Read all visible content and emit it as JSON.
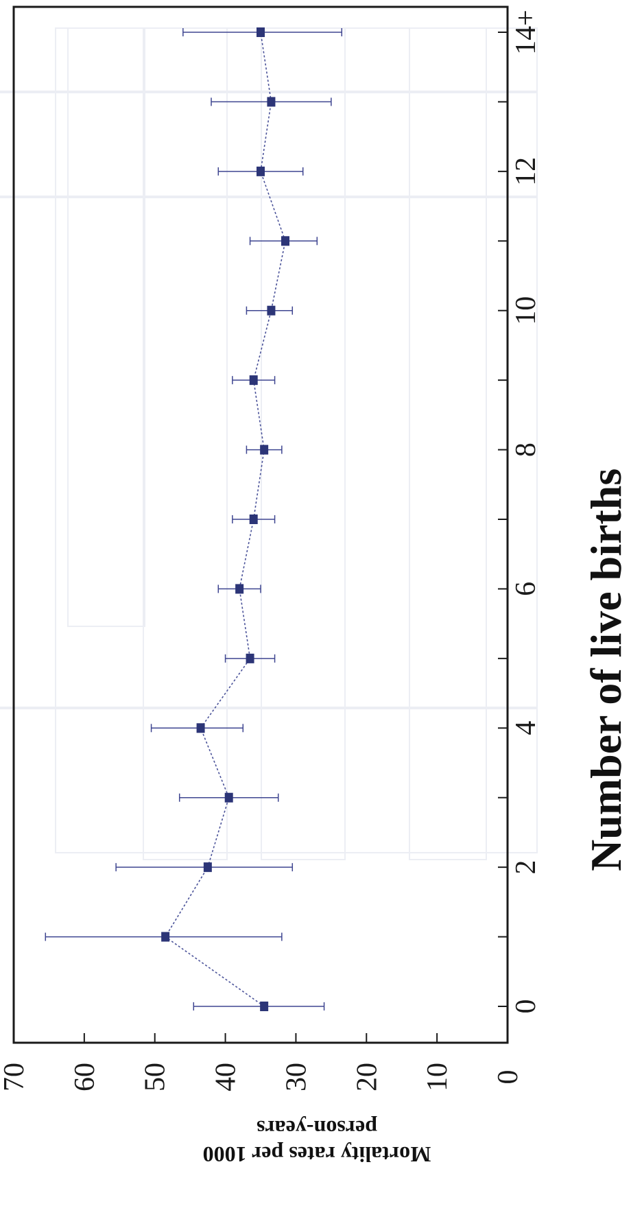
{
  "chart_data": {
    "type": "scatter",
    "orientation": "rotated-90-clockwise",
    "xlabel": "Number of live births",
    "ylabel": [
      "Mortality rates per 1000",
      "person-years"
    ],
    "x_ticks": [
      "0",
      "2",
      "4",
      "6",
      "8",
      "10",
      "12",
      "14+"
    ],
    "y_ticks": [
      "0",
      "10",
      "20",
      "30",
      "40",
      "50",
      "60",
      "70"
    ],
    "ylim": [
      0,
      70
    ],
    "grid": false,
    "series": [
      {
        "marker_color": "#2c3577",
        "line_style": "dotted",
        "points": [
          {
            "x": 0,
            "y": 34.5,
            "lo": 26.0,
            "hi": 44.5
          },
          {
            "x": 1,
            "y": 48.5,
            "lo": 32.0,
            "hi": 65.5
          },
          {
            "x": 2,
            "y": 42.5,
            "lo": 30.5,
            "hi": 55.5
          },
          {
            "x": 3,
            "y": 39.5,
            "lo": 32.5,
            "hi": 46.5
          },
          {
            "x": 4,
            "y": 43.5,
            "lo": 37.5,
            "hi": 50.5
          },
          {
            "x": 5,
            "y": 36.5,
            "lo": 33.0,
            "hi": 40.0
          },
          {
            "x": 6,
            "y": 38.0,
            "lo": 35.0,
            "hi": 41.0
          },
          {
            "x": 7,
            "y": 36.0,
            "lo": 33.0,
            "hi": 39.0
          },
          {
            "x": 8,
            "y": 34.5,
            "lo": 32.0,
            "hi": 37.0
          },
          {
            "x": 9,
            "y": 36.0,
            "lo": 33.0,
            "hi": 39.0
          },
          {
            "x": 10,
            "y": 33.5,
            "lo": 30.5,
            "hi": 37.0
          },
          {
            "x": 11,
            "y": 31.5,
            "lo": 27.0,
            "hi": 36.5
          },
          {
            "x": 12,
            "y": 35.0,
            "lo": 29.0,
            "hi": 41.0
          },
          {
            "x": 13,
            "y": 33.5,
            "lo": 25.0,
            "hi": 42.0
          },
          {
            "x": 14,
            "y": 35.0,
            "lo": 23.5,
            "hi": 46.0
          }
        ]
      }
    ]
  }
}
